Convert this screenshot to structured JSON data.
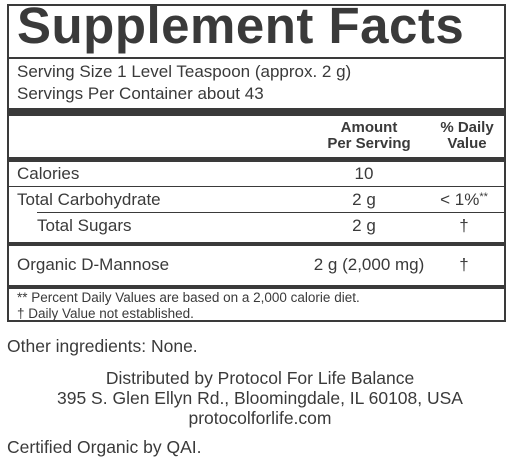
{
  "panel": {
    "title": "Supplement Facts",
    "serving_size": "Serving Size 1 Level Teaspoon (approx. 2 g)",
    "servings_per_container": "Servings Per Container about 43",
    "header_amount_line1": "Amount",
    "header_amount_line2": "Per Serving",
    "header_dv_line1": "% Daily",
    "header_dv_line2": "Value",
    "rows": [
      {
        "name": "Calories",
        "amount": "10",
        "dv": ""
      },
      {
        "name": "Total Carbohydrate",
        "amount": "2 g",
        "dv": "< 1%",
        "dv_mark": "**"
      },
      {
        "name": "Total Sugars",
        "amount": "2 g",
        "dv": "†"
      },
      {
        "name": "Organic D-Mannose",
        "amount": "2 g (2,000 mg)",
        "dv": "†"
      }
    ],
    "footnote_1": "** Percent Daily Values are based on a 2,000 calorie diet.",
    "footnote_2": "† Daily Value not established."
  },
  "other_ingredients": "Other ingredients: None.",
  "distributor": {
    "line1": "Distributed by Protocol For Life Balance",
    "line2": "395 S. Glen Ellyn Rd., Bloomingdale, IL 60108, USA",
    "line3": "protocolforlife.com"
  },
  "certification": "Certified Organic by QAI."
}
